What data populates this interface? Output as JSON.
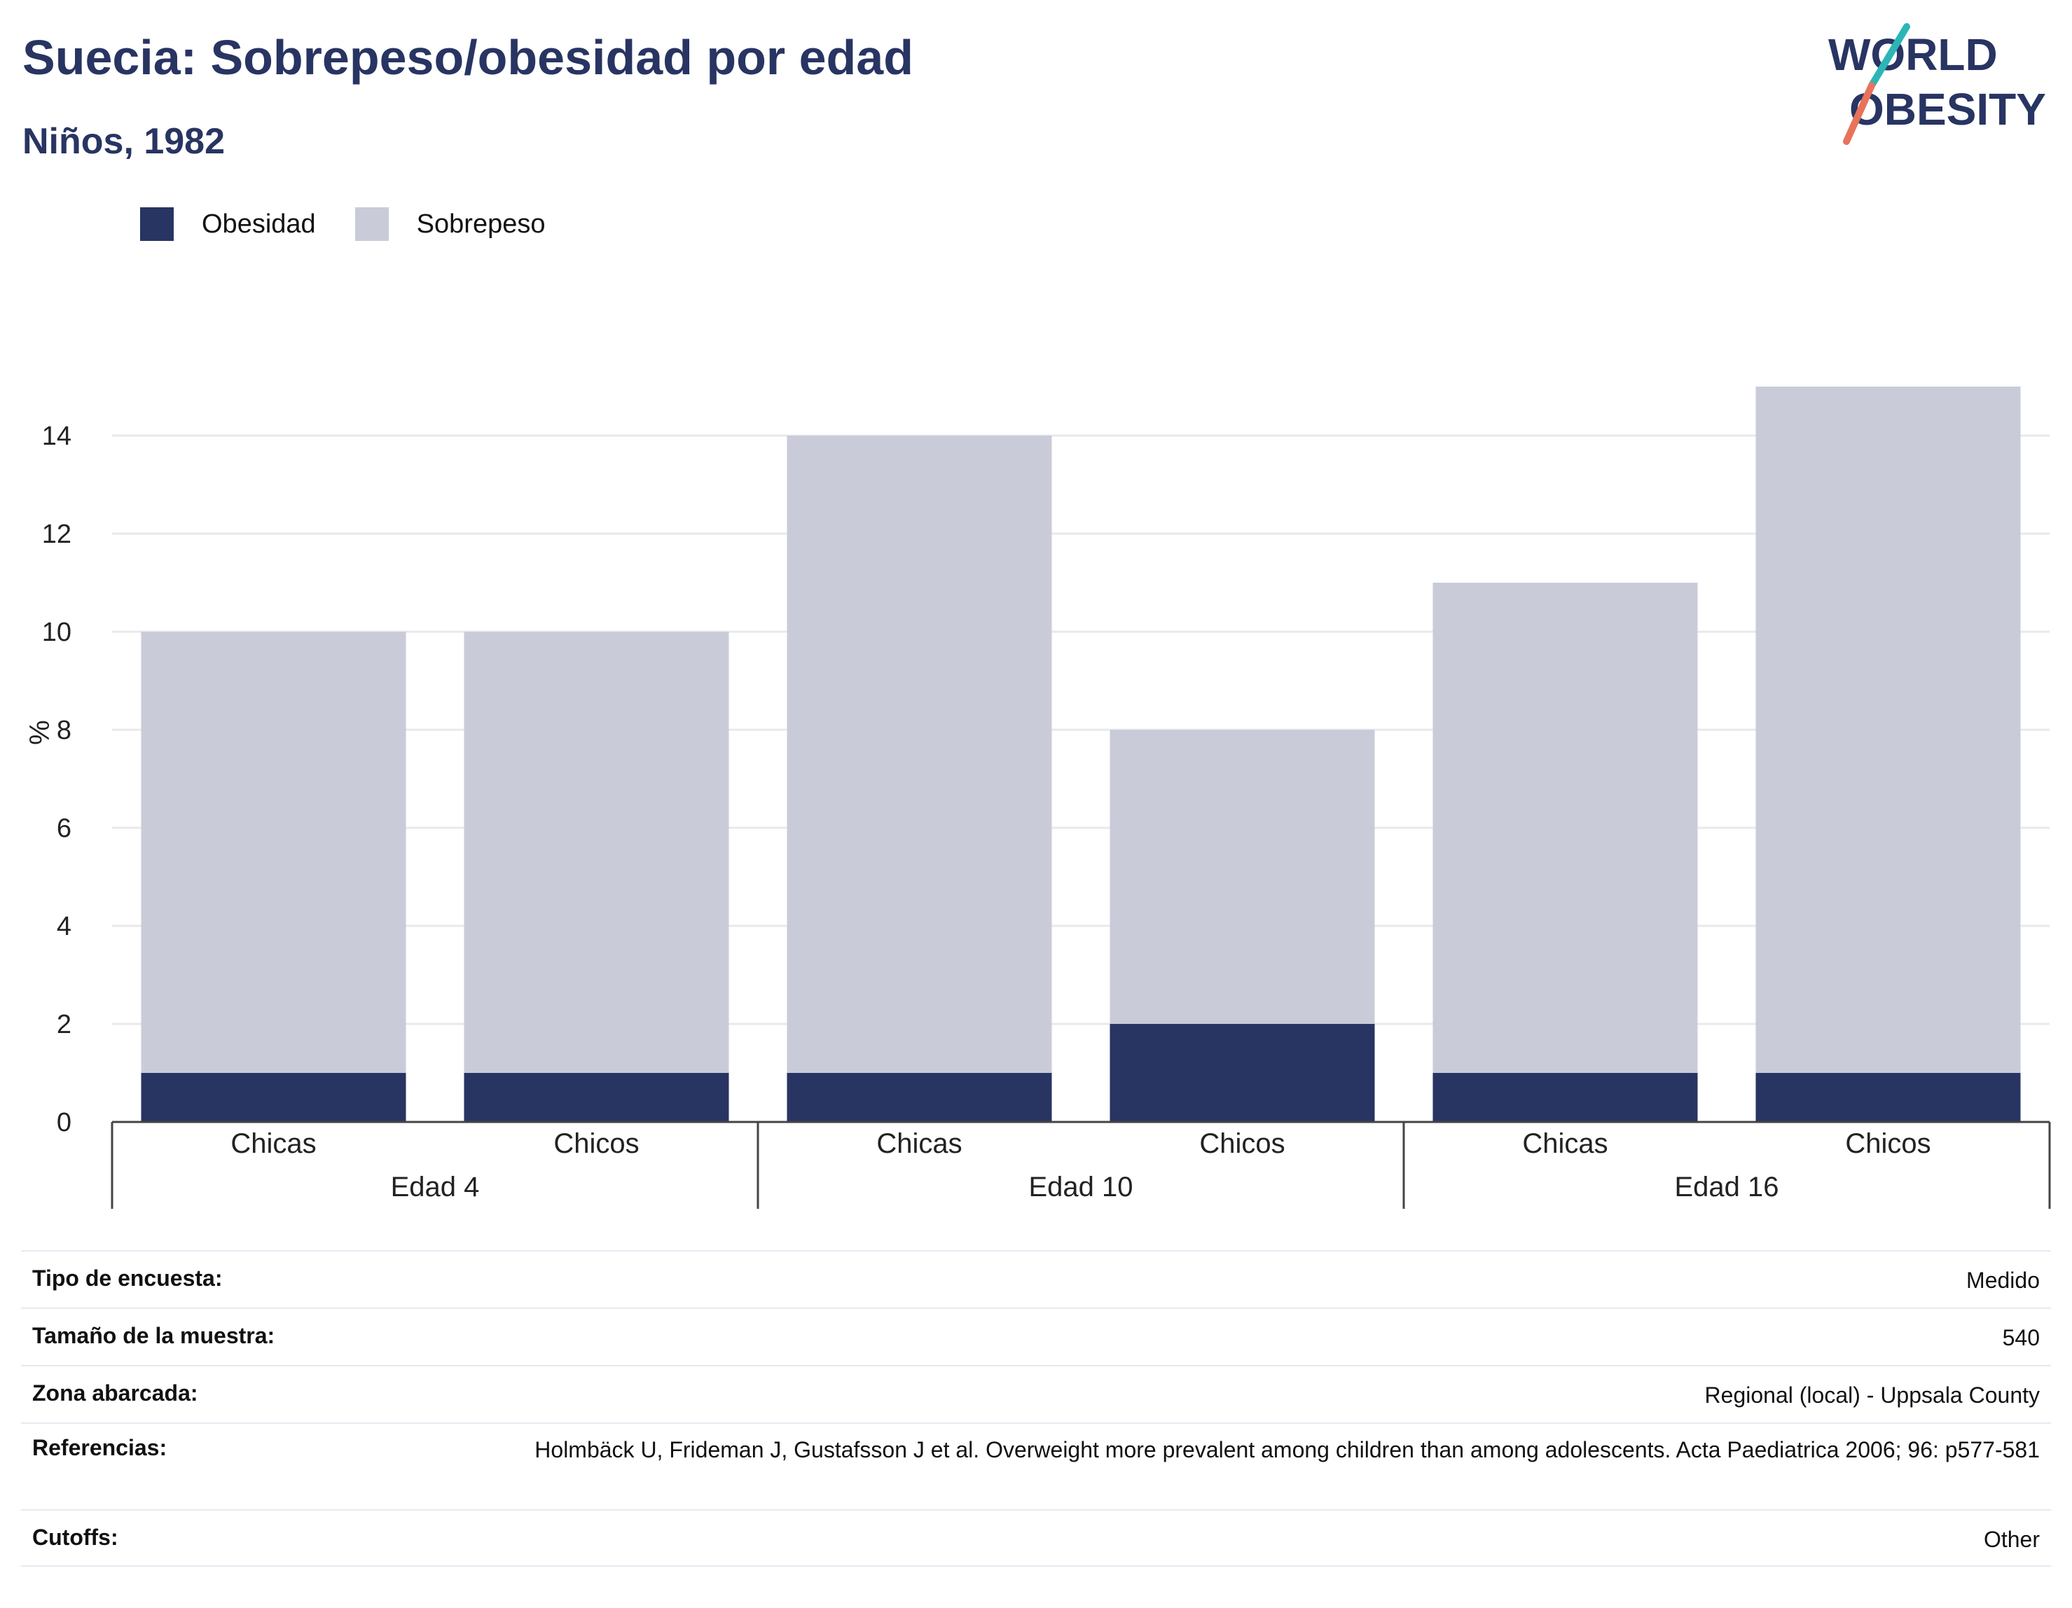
{
  "header": {
    "title": "Suecia: Sobrepeso/obesidad por edad",
    "subtitle": "Niños, 1982"
  },
  "logo": {
    "text_line1": "WORLD",
    "text_line2": "OBESITY",
    "colors": {
      "text": "#283462",
      "slash_top": "#2bb6b5",
      "slash_bottom": "#e8735a"
    }
  },
  "colors": {
    "obesity": "#283462",
    "overweight": "#c9ccd8",
    "grid": "#e8e8ee",
    "axis": "#444444"
  },
  "chart_data": {
    "type": "bar",
    "stacked": true,
    "ylabel": "%",
    "ylim": [
      0,
      15.6
    ],
    "yticks": [
      0,
      2,
      4,
      6,
      8,
      10,
      12,
      14
    ],
    "grid": true,
    "legend_position": "top-left",
    "groups": [
      "Edad 4",
      "Edad 10",
      "Edad 16"
    ],
    "categories": [
      "Chicas",
      "Chicos",
      "Chicas",
      "Chicos",
      "Chicas",
      "Chicos"
    ],
    "series": [
      {
        "name": "Obesidad",
        "values": [
          1,
          1,
          1,
          2,
          1,
          1
        ]
      },
      {
        "name": "Sobrepeso",
        "values": [
          9,
          9,
          13,
          6,
          10,
          14
        ]
      }
    ]
  },
  "info": [
    {
      "key": "Tipo de encuesta:",
      "value": "Medido"
    },
    {
      "key": "Tamaño de la muestra:",
      "value": "540"
    },
    {
      "key": "Zona abarcada:",
      "value": "Regional (local) - Uppsala County"
    },
    {
      "key": "Referencias:",
      "value": "Holmbäck U, Frideman J, Gustafsson J et al. Overweight more prevalent among children than among adolescents. Acta Paediatrica 2006; 96: p577-581"
    },
    {
      "key": "Cutoffs:",
      "value": "Other"
    }
  ]
}
